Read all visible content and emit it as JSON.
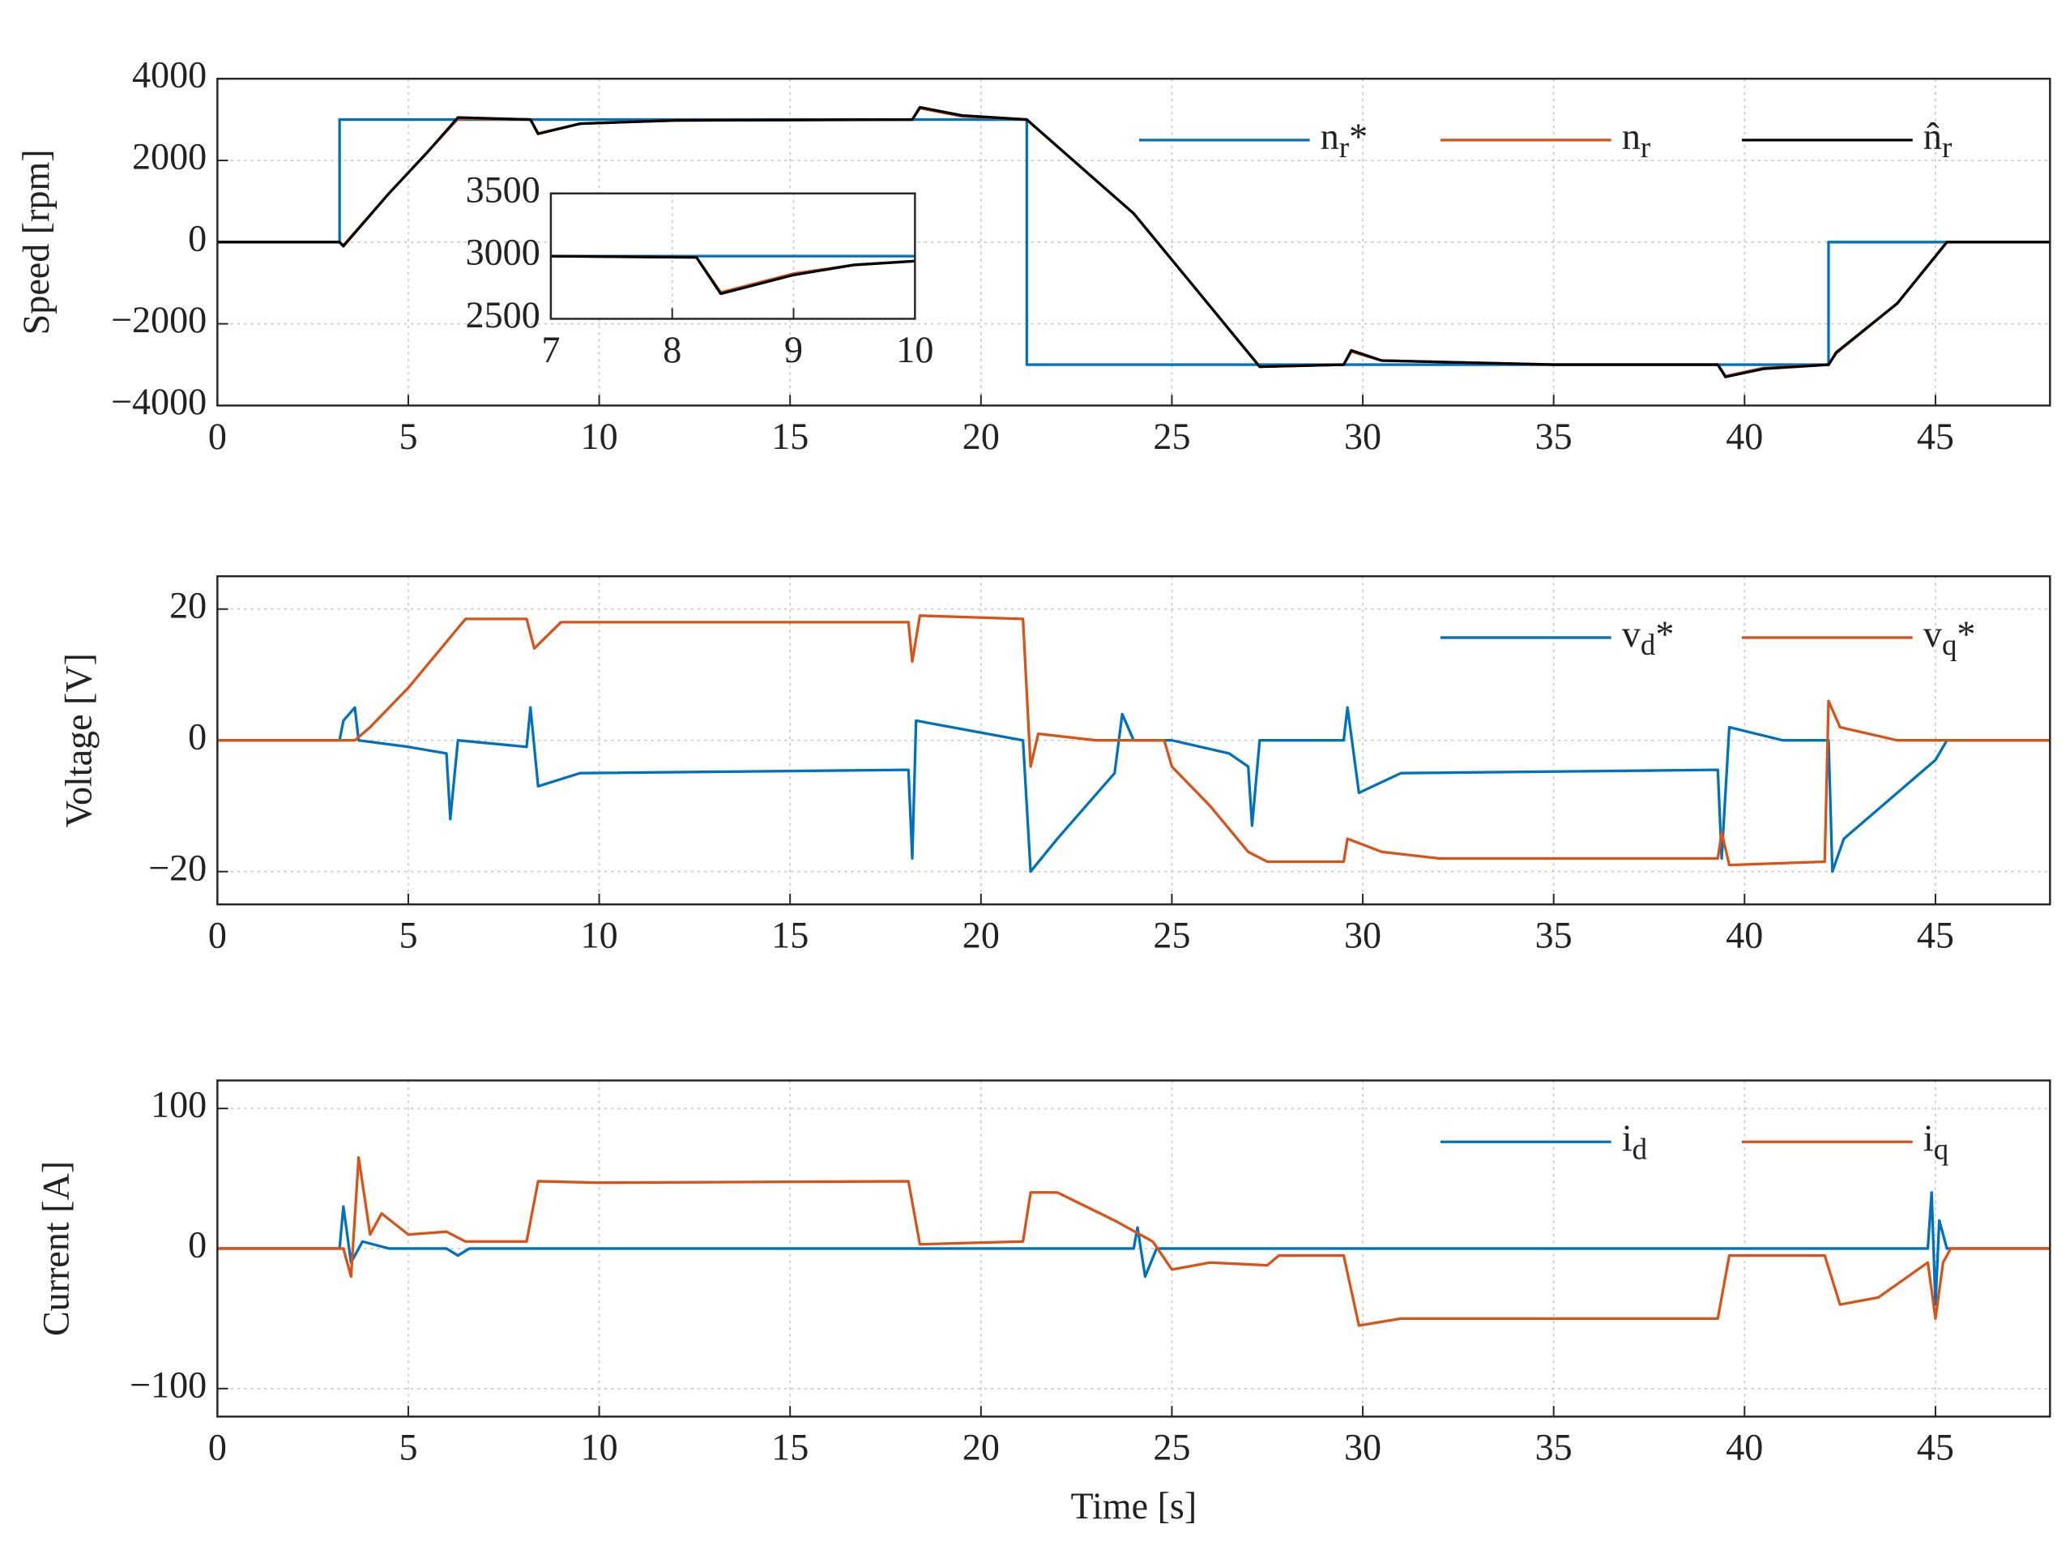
{
  "chart_data": [
    {
      "type": "line",
      "ylabel": "Speed [rpm]",
      "xlim": [
        0,
        48
      ],
      "ylim": [
        -4000,
        4000
      ],
      "xticks": [
        0,
        5,
        10,
        15,
        20,
        25,
        30,
        35,
        40,
        45
      ],
      "yticks": [
        {
          "value": -4000,
          "label": "−4000"
        },
        {
          "value": -2000,
          "label": "−2000"
        },
        0,
        2000,
        4000
      ],
      "grid": true,
      "legend": "upper right",
      "series": [
        {
          "name": "nr*",
          "color": "#0072bd",
          "x": [
            0,
            3.2,
            3.2,
            21.2,
            21.2,
            42.2,
            42.2,
            48
          ],
          "values": [
            0,
            0,
            3000,
            3000,
            -3000,
            -3000,
            0,
            0
          ]
        },
        {
          "name": "nr",
          "color": "#d95319",
          "x": [
            0,
            3.2,
            3.3,
            4.5,
            5.5,
            6.3,
            8.2,
            8.4,
            9.5,
            12,
            18.2,
            18.4,
            19.5,
            21.2,
            24,
            25.5,
            27.3,
            29.5,
            29.7,
            30.5,
            35,
            39.3,
            39.5,
            40.5,
            42.2,
            42.4,
            44,
            45.3,
            48
          ],
          "values": [
            0,
            0,
            -80,
            1200,
            2200,
            3020,
            3000,
            2660,
            2900,
            2980,
            3000,
            3280,
            3080,
            3000,
            700,
            -1000,
            -3050,
            -3000,
            -2680,
            -2900,
            -3000,
            -3000,
            -3280,
            -3080,
            -3000,
            -2720,
            -1500,
            0,
            0
          ]
        },
        {
          "name": "n̂r",
          "color": "#000000",
          "x": [
            0,
            3.2,
            3.3,
            4.5,
            5.5,
            6.3,
            8.2,
            8.4,
            9.5,
            12,
            18.2,
            18.4,
            19.5,
            21.2,
            24,
            25.5,
            27.3,
            29.5,
            29.7,
            30.5,
            35,
            39.3,
            39.5,
            40.5,
            42.2,
            42.4,
            44,
            45.3,
            48
          ],
          "values": [
            0,
            0,
            -100,
            1200,
            2200,
            3050,
            3000,
            2650,
            2900,
            2980,
            3000,
            3300,
            3100,
            3000,
            700,
            -1000,
            -3050,
            -3000,
            -2650,
            -2900,
            -3000,
            -3000,
            -3300,
            -3100,
            -3000,
            -2700,
            -1500,
            0,
            0
          ]
        }
      ]
    },
    {
      "type": "line",
      "xlim": [
        7,
        10
      ],
      "ylim": [
        2500,
        3500
      ],
      "xticks": [
        7,
        8,
        9,
        10
      ],
      "yticks": [
        2500,
        3000,
        3500
      ],
      "grid": true,
      "series": [
        {
          "color": "#0072bd",
          "x": [
            7,
            10
          ],
          "values": [
            3000,
            3000
          ]
        },
        {
          "color": "#d95319",
          "x": [
            7,
            8.2,
            8.4,
            8.6,
            9,
            9.5,
            10
          ],
          "values": [
            3000,
            2990,
            2710,
            2760,
            2860,
            2930,
            2960
          ]
        },
        {
          "color": "#000000",
          "x": [
            7,
            8.2,
            8.4,
            8.6,
            9,
            9.5,
            10
          ],
          "values": [
            3000,
            2990,
            2700,
            2750,
            2850,
            2930,
            2960
          ]
        }
      ]
    },
    {
      "type": "line",
      "ylabel": "Voltage [V]",
      "xlim": [
        0,
        48
      ],
      "ylim": [
        -25,
        25
      ],
      "xticks": [
        0,
        5,
        10,
        15,
        20,
        25,
        30,
        35,
        40,
        45
      ],
      "yticks": [
        {
          "value": -20,
          "label": "−20"
        },
        0,
        20
      ],
      "grid": true,
      "legend": "upper right",
      "series": [
        {
          "name": "vd*",
          "color": "#0072bd",
          "x": [
            0,
            3.2,
            3.3,
            3.6,
            3.7,
            5,
            6,
            6.1,
            6.3,
            8.1,
            8.2,
            8.4,
            9.5,
            18.1,
            18.2,
            18.3,
            21.1,
            21.3,
            22,
            23.5,
            23.7,
            24,
            25,
            26.5,
            27,
            27.1,
            27.3,
            29.5,
            29.6,
            29.9,
            31,
            39.3,
            39.4,
            39.6,
            41,
            42.2,
            42.3,
            42.6,
            45,
            45.3,
            48
          ],
          "values": [
            0,
            0,
            3,
            5,
            0,
            -1,
            -2,
            -12,
            0,
            -1,
            5,
            -7,
            -5,
            -4.5,
            -18,
            3,
            0,
            -20,
            -15,
            -5,
            4,
            0,
            0,
            -2,
            -4,
            -13,
            0,
            0,
            5,
            -8,
            -5,
            -4.5,
            -18,
            2,
            0,
            0,
            -20,
            -15,
            -3,
            0,
            0
          ]
        },
        {
          "name": "vq*",
          "color": "#d95319",
          "x": [
            0,
            3.6,
            4,
            5,
            6,
            6.5,
            8.1,
            8.3,
            9,
            18.1,
            18.2,
            18.4,
            21.1,
            21.3,
            21.5,
            23,
            24.8,
            25,
            26,
            27,
            27.5,
            29.5,
            29.6,
            30.5,
            32,
            39.3,
            39.4,
            39.6,
            42.1,
            42.2,
            42.5,
            44,
            48
          ],
          "values": [
            0,
            0,
            2,
            8,
            15,
            18.5,
            18.5,
            14,
            18,
            18,
            12,
            19,
            18.5,
            -4,
            1,
            0,
            0,
            -4,
            -10,
            -17,
            -18.5,
            -18.5,
            -15,
            -17,
            -18,
            -18,
            -14,
            -19,
            -18.5,
            6,
            2,
            0,
            0
          ]
        }
      ]
    },
    {
      "type": "line",
      "ylabel": "Current [A]",
      "xlabel": "Time [s]",
      "xlim": [
        0,
        48
      ],
      "ylim": [
        -120,
        120
      ],
      "xticks": [
        0,
        5,
        10,
        15,
        20,
        25,
        30,
        35,
        40,
        45
      ],
      "yticks": [
        {
          "value": -100,
          "label": "−100"
        },
        0,
        100
      ],
      "grid": true,
      "legend": "upper right",
      "series": [
        {
          "name": "id",
          "color": "#0072bd",
          "x": [
            0,
            3.2,
            3.3,
            3.5,
            3.8,
            4.5,
            6,
            6.3,
            6.6,
            24,
            24.1,
            24.3,
            24.6,
            44.8,
            44.9,
            45,
            45.1,
            45.3,
            48
          ],
          "values": [
            0,
            0,
            30,
            -10,
            5,
            0,
            0,
            -5,
            0,
            0,
            15,
            -20,
            0,
            0,
            40,
            -40,
            20,
            0,
            0
          ]
        },
        {
          "name": "iq",
          "color": "#d95319",
          "x": [
            0,
            3.3,
            3.5,
            3.7,
            4,
            4.3,
            5,
            6,
            6.5,
            8.1,
            8.4,
            10,
            18.1,
            18.4,
            21.1,
            21.3,
            22,
            23.5,
            24.5,
            25,
            26,
            27.5,
            27.8,
            29.5,
            29.9,
            31,
            39.3,
            39.6,
            42.1,
            42.5,
            43.5,
            44.8,
            45,
            45.2,
            45.4,
            48
          ],
          "values": [
            0,
            0,
            -20,
            65,
            10,
            25,
            10,
            12,
            5,
            5,
            48,
            47,
            48,
            3,
            5,
            40,
            40,
            20,
            5,
            -15,
            -10,
            -12,
            -5,
            -5,
            -55,
            -50,
            -50,
            -5,
            -5,
            -40,
            -35,
            -10,
            -50,
            -10,
            0,
            0
          ]
        }
      ]
    }
  ]
}
